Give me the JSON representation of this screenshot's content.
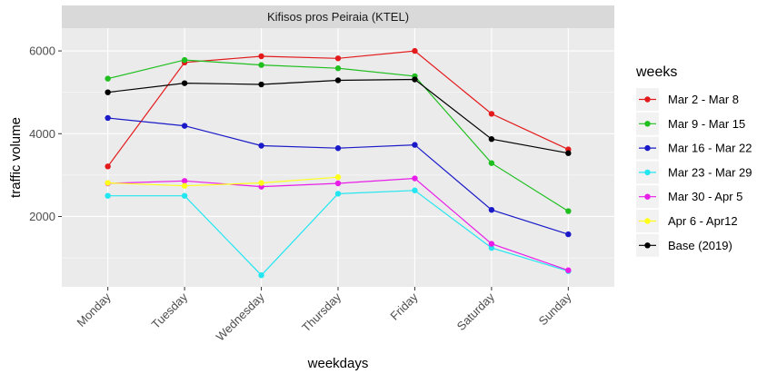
{
  "chart_data": {
    "type": "line",
    "title": "Kifisos pros Peiraia (KTEL)",
    "xlabel": "weekdays",
    "ylabel": "traffic volume",
    "categories": [
      "Monday",
      "Tuesday",
      "Wednesday",
      "Thursday",
      "Friday",
      "Saturday",
      "Sunday"
    ],
    "ylim": [
      300,
      6550
    ],
    "yticks": [
      2000,
      4000,
      6000
    ],
    "grid": true,
    "legend_title": "weeks",
    "legend_position": "right",
    "series": [
      {
        "name": "Mar 2 - Mar 8",
        "color": "#e31a1c",
        "values": [
          3210,
          5720,
          5870,
          5820,
          6000,
          4480,
          3620
        ]
      },
      {
        "name": "Mar 9 - Mar 15",
        "color": "#1fbf1f",
        "values": [
          5330,
          5780,
          5660,
          5580,
          5390,
          3290,
          2130
        ]
      },
      {
        "name": "Mar 16 - Mar 22",
        "color": "#1a1ac8",
        "values": [
          4380,
          4190,
          3710,
          3650,
          3730,
          2160,
          1570
        ]
      },
      {
        "name": "Mar 23 - Mar 29",
        "color": "#22e6f0",
        "values": [
          2500,
          2500,
          580,
          2550,
          2630,
          1240,
          680
        ]
      },
      {
        "name": "Mar 30 - Apr 5",
        "color": "#e81ee8",
        "values": [
          2800,
          2860,
          2720,
          2800,
          2920,
          1340,
          700
        ]
      },
      {
        "name": "Apr 6 - Apr12",
        "color": "#ffff1a",
        "values": [
          2810,
          2740,
          2810,
          2950,
          null,
          null,
          null
        ]
      },
      {
        "name": "Base (2019)",
        "color": "#000000",
        "values": [
          5000,
          5220,
          5190,
          5290,
          5310,
          3870,
          3530
        ]
      }
    ]
  }
}
